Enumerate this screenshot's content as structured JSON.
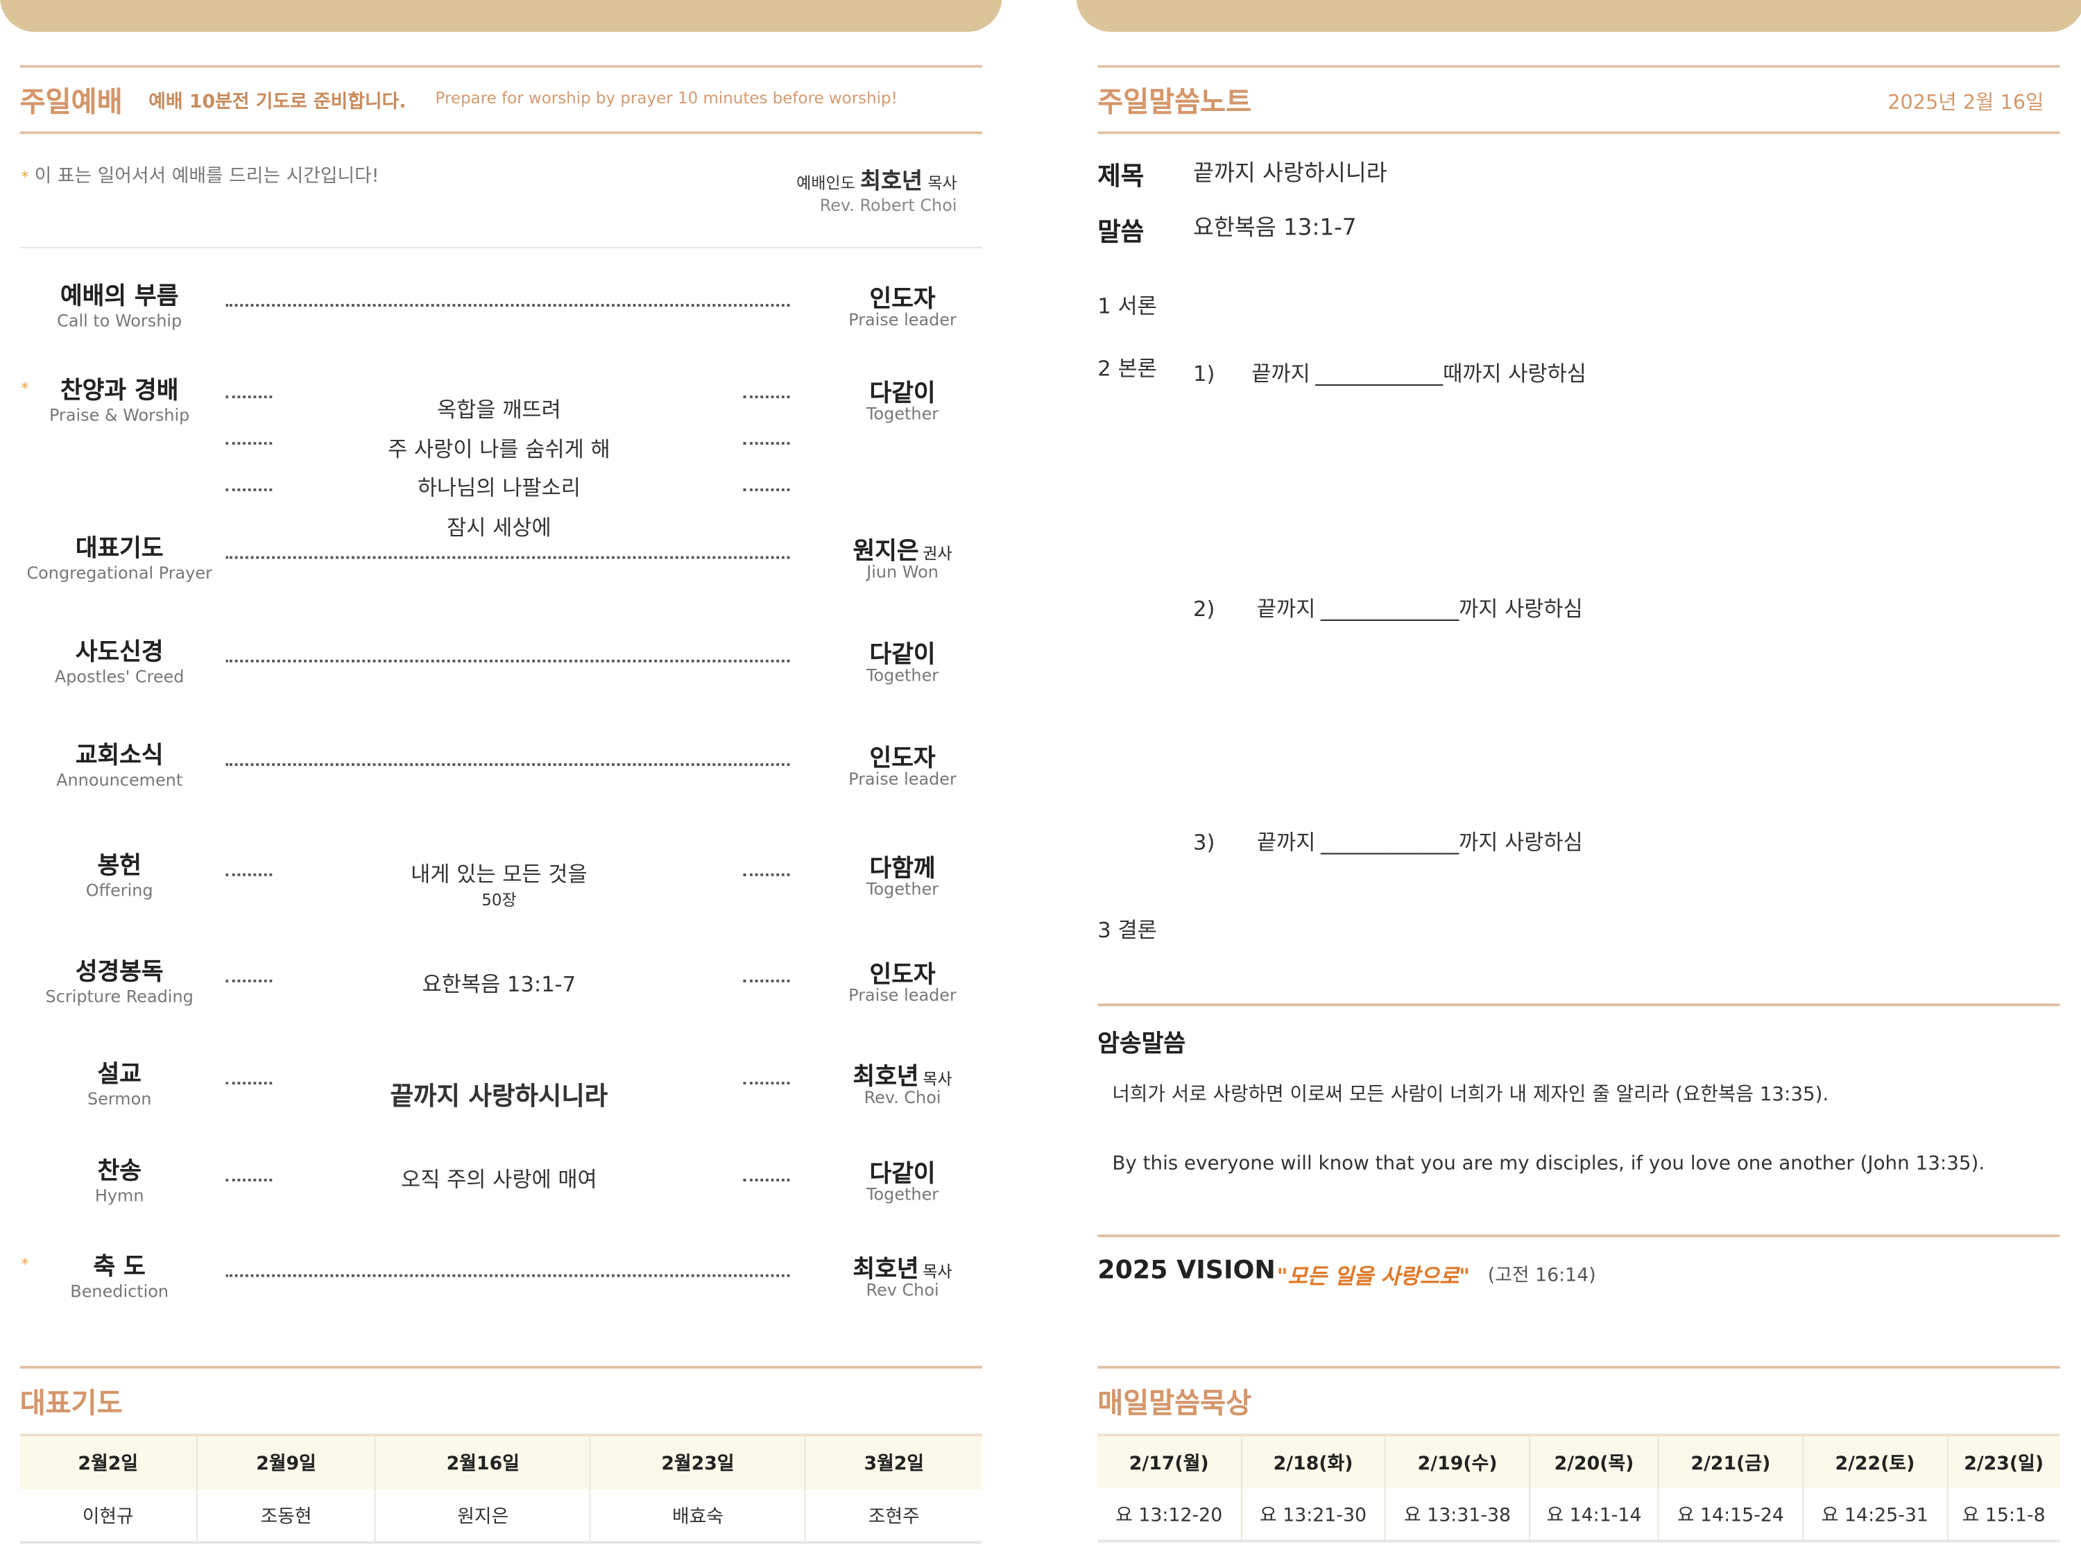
{
  "colors": {
    "tab": "#dcc49a",
    "accent": "#d4966a",
    "vision": "#e07a2a",
    "table_header": "#fbf9ea"
  },
  "worship": {
    "title": "주일예배",
    "subtitle_ko": "예배 10분전 기도로 준비합니다.",
    "subtitle_en": "Prepare for worship by prayer 10 minutes before worship!",
    "stand_note": "이 표는 일어서서 예배를 드리는 시간입니다!",
    "star": "*",
    "leader_label": "예배인도",
    "leader_name": "최호년",
    "leader_title": "목사",
    "leader_en": "Rev. Robert Choi",
    "items": [
      {
        "ko": "예배의 부름",
        "en": "Call to Worship",
        "star": false,
        "content": [],
        "leader": "인도자",
        "leader_title": "",
        "leader_en": "Praise leader"
      },
      {
        "ko": "찬양과 경배",
        "en": "Praise & Worship",
        "star": true,
        "content": [
          "옥합을 깨뜨려",
          "주 사랑이 나를 숨쉬게 해",
          "하나님의 나팔소리",
          "잠시 세상에"
        ],
        "leader": "다같이",
        "leader_title": "",
        "leader_en": "Together"
      },
      {
        "ko": "대표기도",
        "en": "Congregational Prayer",
        "star": false,
        "content": [],
        "leader": "원지은",
        "leader_title": "권사",
        "leader_en": "Jiun Won"
      },
      {
        "ko": "사도신경",
        "en": "Apostles' Creed",
        "star": false,
        "content": [],
        "leader": "다같이",
        "leader_title": "",
        "leader_en": "Together"
      },
      {
        "ko": "교회소식",
        "en": "Announcement",
        "star": false,
        "content": [],
        "leader": "인도자",
        "leader_title": "",
        "leader_en": "Praise leader"
      },
      {
        "ko": "봉헌",
        "en": "Offering",
        "star": false,
        "content": [
          "내게 있는 모든 것을"
        ],
        "content_sub": "50장",
        "leader": "다함께",
        "leader_title": "",
        "leader_en": "Together"
      },
      {
        "ko": "성경봉독",
        "en": "Scripture Reading",
        "star": false,
        "content": [
          "요한복음 13:1-7"
        ],
        "leader": "인도자",
        "leader_title": "",
        "leader_en": "Praise leader"
      },
      {
        "ko": "설교",
        "en": "Sermon",
        "star": false,
        "content": [
          "끝까지 사랑하시니라"
        ],
        "leader": "최호년",
        "leader_title": "목사",
        "leader_en": "Rev. Choi"
      },
      {
        "ko": "찬송",
        "en": "Hymn",
        "star": false,
        "content": [
          "오직 주의 사랑에 매여"
        ],
        "leader": "다같이",
        "leader_title": "",
        "leader_en": "Together"
      },
      {
        "ko": "축 도",
        "en": "Benediction",
        "star": true,
        "content": [],
        "leader": "최호년",
        "leader_title": "목사",
        "leader_en": "Rev Choi"
      }
    ]
  },
  "prayer": {
    "title": "대표기도",
    "dates": [
      "2월2일",
      "2월9일",
      "2월16일",
      "2월23일",
      "3월2일"
    ],
    "names": [
      "이현규",
      "조동현",
      "원지은",
      "배효숙",
      "조현주"
    ]
  },
  "notes": {
    "title": "주일말씀노트",
    "date": "2025년 2월 16일",
    "subject_label": "제목",
    "subject": "끝까지 사랑하시니라",
    "scripture_label": "말씀",
    "scripture": "요한복음 13:1-7",
    "intro": "1 서론",
    "body": "2 본론",
    "points": [
      {
        "num": "1)",
        "pre": "끝까지",
        "blank": "____________",
        "post": "때까지 사랑하심"
      },
      {
        "num": "2)",
        "pre": "끝까지",
        "blank": "_____________",
        "post": "까지 사랑하심"
      },
      {
        "num": "3)",
        "pre": "끝까지",
        "blank": "_____________",
        "post": "까지 사랑하심"
      }
    ],
    "conclusion": "3 결론"
  },
  "memory": {
    "title": "암송말씀",
    "ko": "너희가 서로 사랑하면 이로써 모든 사람이 너희가 내 제자인 줄 알리라 (요한복음 13:35).",
    "en": "By this everyone will know that you are my disciples, if you love one another (John 13:35)."
  },
  "vision": {
    "label": "2025 VISION",
    "quote": "\"모든 일을 사랑으로\"",
    "ref": "(고전 16:14)"
  },
  "daily": {
    "title": "매일말씀묵상",
    "dates": [
      "2/17(월)",
      "2/18(화)",
      "2/19(수)",
      "2/20(목)",
      "2/21(금)",
      "2/22(토)",
      "2/23(일)"
    ],
    "passages": [
      "요 13:12-20",
      "요 13:21-30",
      "요 13:31-38",
      "요 14:1-14",
      "요 14:15-24",
      "요 14:25-31",
      "요 15:1-8"
    ]
  }
}
